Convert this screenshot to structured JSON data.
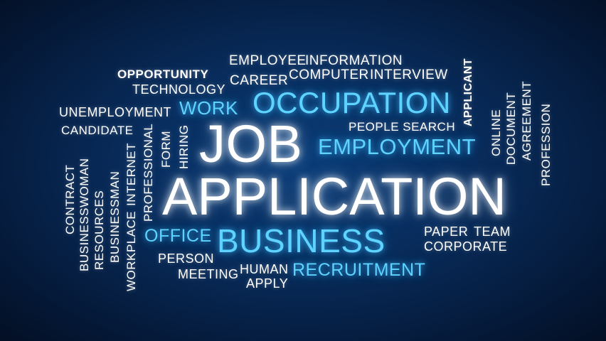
{
  "colors": {
    "background": "#082c5c",
    "white_word": "#ffffff",
    "blue_word": "#5fd3ff"
  },
  "words": {
    "job": "JOB",
    "application": "APPLICATION",
    "business": "BUSINESS",
    "occupation": "OCCUPATION",
    "employment": "EMPLOYMENT",
    "work": "WORK",
    "office": "OFFICE",
    "recruitment": "RECRUITMENT",
    "employee": "EMPLOYEE",
    "information": "INFORMATION",
    "opportunity": "OPPORTUNITY",
    "career": "CAREER",
    "computer": "COMPUTER",
    "interview": "INTERVIEW",
    "technology": "TECHNOLOGY",
    "unemployment": "UNEMPLOYMENT",
    "candidate": "CANDIDATE",
    "people_search": "PEOPLE SEARCH",
    "applicant": "APPLICANT",
    "online": "ONLINE",
    "document": "DOCUMENT",
    "agreement": "AGREEMENT",
    "profession": "PROFESSION",
    "hiring": "HIRING",
    "form": "FORM",
    "professional": "PROFESSIONAL",
    "workplace": "WORKPLACE",
    "internet": "INTERNET",
    "businessman": "BUSINESSMAN",
    "resources": "RESOURCES",
    "businesswoman": "BUSINESSWOMAN",
    "contract": "CONTRACT",
    "paper": "PAPER",
    "team": "TEAM",
    "corporate": "CORPORATE",
    "person": "PERSON",
    "meeting": "MEETING",
    "human": "HUMAN",
    "apply": "APPLY"
  }
}
